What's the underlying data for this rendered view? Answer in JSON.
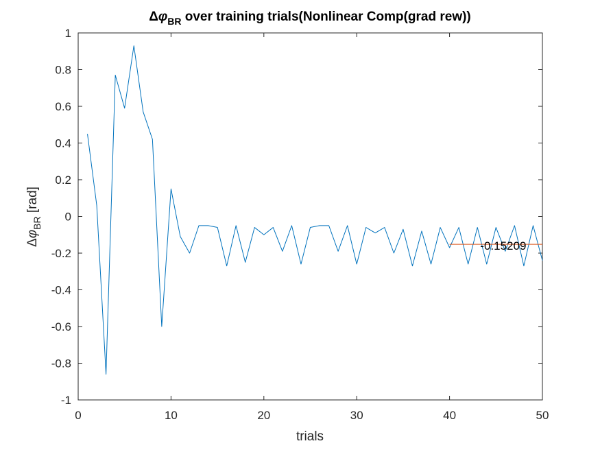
{
  "chart_data": {
    "type": "line",
    "title": {
      "prefix": "Δ",
      "symbol": "φ",
      "subscript": "BR",
      "rest": " over training trials(Nonlinear Comp(grad rew))"
    },
    "xlabel": "trials",
    "ylabel": {
      "prefix": "Δ",
      "symbol": "φ",
      "subscript": "BR",
      "rest": " [rad]"
    },
    "xlim": [
      0,
      50
    ],
    "ylim": [
      -1,
      1
    ],
    "xticks": [
      0,
      10,
      20,
      30,
      40,
      50
    ],
    "xtick_labels": [
      "0",
      "10",
      "20",
      "30",
      "40",
      "50"
    ],
    "yticks": [
      -1,
      -0.8,
      -0.6,
      -0.4,
      -0.2,
      0,
      0.2,
      0.4,
      0.6,
      0.8,
      1
    ],
    "ytick_labels": [
      "-1",
      "-0.8",
      "-0.6",
      "-0.4",
      "-0.2",
      "0",
      "0.2",
      "0.4",
      "0.6",
      "0.8",
      "1"
    ],
    "grid": false,
    "series": [
      {
        "color": "#0072BD",
        "x": [
          1,
          2,
          3,
          4,
          5,
          6,
          7,
          8,
          9,
          10,
          11,
          12,
          13,
          14,
          15,
          16,
          17,
          18,
          19,
          20,
          21,
          22,
          23,
          24,
          25,
          26,
          27,
          28,
          29,
          30,
          31,
          32,
          33,
          34,
          35,
          36,
          37,
          38,
          39,
          40,
          41,
          42,
          43,
          44,
          45,
          46,
          47,
          48,
          49,
          50
        ],
        "y": [
          0.45,
          0.06,
          -0.86,
          0.77,
          0.59,
          0.93,
          0.57,
          0.42,
          -0.6,
          0.15,
          -0.11,
          -0.2,
          -0.05,
          -0.05,
          -0.06,
          -0.27,
          -0.05,
          -0.25,
          -0.06,
          -0.1,
          -0.06,
          -0.19,
          -0.05,
          -0.26,
          -0.06,
          -0.05,
          -0.05,
          -0.19,
          -0.05,
          -0.26,
          -0.06,
          -0.09,
          -0.06,
          -0.2,
          -0.07,
          -0.27,
          -0.08,
          -0.26,
          -0.06,
          -0.17,
          -0.06,
          -0.26,
          -0.06,
          -0.26,
          -0.06,
          -0.19,
          -0.05,
          -0.27,
          -0.05,
          -0.24
        ]
      },
      {
        "color": "#D95319",
        "x": [
          40,
          50
        ],
        "y": [
          -0.15209,
          -0.15209
        ]
      }
    ],
    "annotation": {
      "text": "-0.15209",
      "x": 43.3,
      "y": -0.15209
    }
  }
}
